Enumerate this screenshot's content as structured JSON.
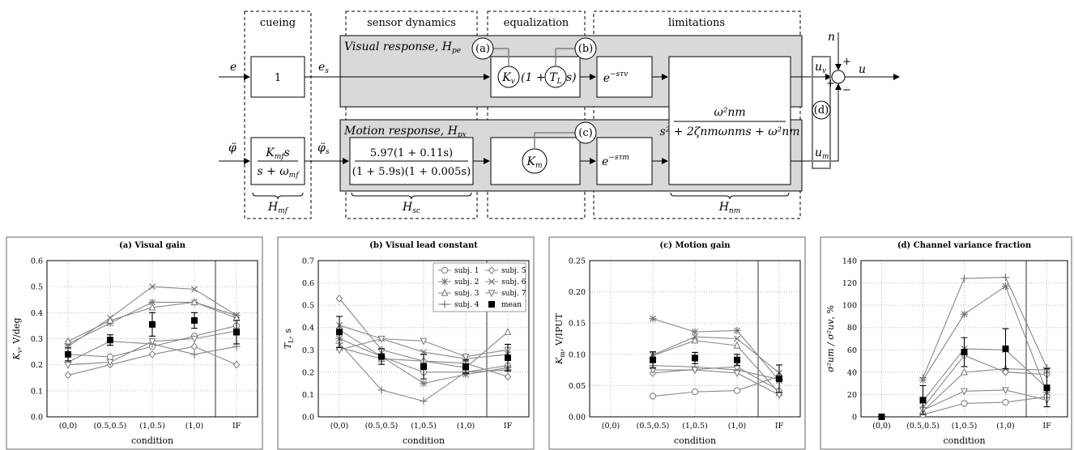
{
  "diagram": {
    "sections": {
      "cueing": "cueing",
      "sensor": "sensor dynamics",
      "equalization": "equalization",
      "limitations": "limitations"
    },
    "visual_title": "Visual response, H_{p_e}",
    "visual_title_main": "Visual response, ",
    "visual_title_H": "H",
    "visual_title_sub": "pe",
    "motion_title_main": "Motion response, ",
    "motion_title_H": "H",
    "motion_title_sub": "px",
    "input_e": "e",
    "input_phi": "φ̈",
    "signal_es": "e",
    "signal_es_sub": "s",
    "signal_phis": "φ̈",
    "signal_phis_sub": "s",
    "block_gain": "1",
    "block_mf_num": "K",
    "block_mf_num_sub": "mf",
    "block_mf_num_s": "s",
    "block_mf_den": "s + ω",
    "block_mf_den_sub": "mf",
    "block_sc_num": "5.97(1 + 0.11s)",
    "block_sc_den": "(1 + 5.9s)(1 + 0.005s)",
    "block_kv": "K",
    "block_kv_sub": "v",
    "block_lead_open": "(1 +",
    "block_tl": "T",
    "block_tl_sub": "L",
    "block_lead_close": "s)",
    "block_km": "K",
    "block_km_sub": "m",
    "delay_v": "e",
    "delay_v_exp": "−sτv",
    "delay_m": "e",
    "delay_m_exp": "−sτm",
    "nm_num": "ω²nm",
    "nm_den": "s² + 2ζnmωnms + ω²nm",
    "out_uv": "u",
    "out_uv_sub": "v",
    "out_um": "u",
    "out_um_sub": "m",
    "out_u": "u",
    "noise_n": "n",
    "plus1": "+",
    "plus2": "+",
    "minus": "−",
    "mark_a": "(a)",
    "mark_b": "(b)",
    "mark_c": "(c)",
    "mark_d": "(d)",
    "brace_mf": "H",
    "brace_mf_sub": "mf",
    "brace_sc": "H",
    "brace_sc_sub": "sc",
    "brace_nm": "H",
    "brace_nm_sub": "nm"
  },
  "chart_data": [
    {
      "type": "line",
      "title": "(a) Visual gain",
      "xlabel": "condition",
      "ylabel": "K_v, V/deg",
      "ylabel_main": "K",
      "ylabel_sub": "v",
      "ylabel_unit": ",  V/deg",
      "categories": [
        "(0,0)",
        "(0.5,0.5)",
        "(1,0.5)",
        "(1,0)",
        "IF"
      ],
      "yticks": [
        "0.0",
        "0.1",
        "0.2",
        "0.3",
        "0.4",
        "0.5",
        "0.6"
      ],
      "ylim": [
        0,
        0.6
      ],
      "series": [
        {
          "name": "subj. 1",
          "marker": "circle",
          "values": [
            0.24,
            0.23,
            0.27,
            0.31,
            0.35
          ]
        },
        {
          "name": "subj. 2",
          "marker": "asterisk",
          "values": [
            0.28,
            0.36,
            0.44,
            0.44,
            0.39
          ]
        },
        {
          "name": "subj. 3",
          "marker": "triangle-up",
          "values": [
            0.29,
            0.37,
            0.42,
            0.44,
            0.38
          ]
        },
        {
          "name": "subj. 4",
          "marker": "plus",
          "values": [
            0.21,
            0.29,
            0.28,
            0.24,
            0.27
          ]
        },
        {
          "name": "subj. 5",
          "marker": "diamond",
          "values": [
            0.16,
            0.2,
            0.24,
            0.27,
            0.2
          ]
        },
        {
          "name": "subj. 6",
          "marker": "cross",
          "values": [
            0.27,
            0.38,
            0.5,
            0.49,
            0.39
          ]
        },
        {
          "name": "subj. 7",
          "marker": "triangle-down",
          "values": [
            0.2,
            0.21,
            0.29,
            0.3,
            0.33
          ]
        }
      ],
      "mean": {
        "values": [
          0.24,
          0.295,
          0.355,
          0.37,
          0.325
        ],
        "err": [
          0.025,
          0.02,
          0.045,
          0.03,
          0.045
        ]
      }
    },
    {
      "type": "line",
      "title": "(b) Visual lead constant",
      "xlabel": "condition",
      "ylabel": "T_L, s",
      "ylabel_main": "T",
      "ylabel_sub": "L",
      "ylabel_unit": ",  s",
      "categories": [
        "(0,0)",
        "(0.5,0.5)",
        "(1,0.5)",
        "(1,0)",
        "IF"
      ],
      "yticks": [
        "0.0",
        "0.1",
        "0.2",
        "0.3",
        "0.4",
        "0.5",
        "0.6",
        "0.7"
      ],
      "ylim": [
        0,
        0.7
      ],
      "series": [
        {
          "name": "subj. 1",
          "marker": "circle",
          "values": [
            0.39,
            0.27,
            0.2,
            0.2,
            0.23
          ]
        },
        {
          "name": "subj. 2",
          "marker": "asterisk",
          "values": [
            0.35,
            0.27,
            0.15,
            0.19,
            0.22
          ]
        },
        {
          "name": "subj. 3",
          "marker": "triangle-up",
          "values": [
            0.31,
            0.26,
            0.25,
            0.22,
            0.38
          ]
        },
        {
          "name": "subj. 4",
          "marker": "plus",
          "values": [
            0.33,
            0.12,
            0.07,
            0.2,
            0.21
          ]
        },
        {
          "name": "subj. 5",
          "marker": "diamond",
          "values": [
            0.53,
            0.3,
            0.25,
            0.24,
            0.18
          ]
        },
        {
          "name": "subj. 6",
          "marker": "cross",
          "values": [
            0.41,
            0.35,
            0.29,
            0.26,
            0.28
          ]
        },
        {
          "name": "subj. 7",
          "marker": "triangle-down",
          "values": [
            0.3,
            0.35,
            0.34,
            0.27,
            0.3
          ]
        }
      ],
      "mean": {
        "values": [
          0.38,
          0.27,
          0.225,
          0.225,
          0.265
        ],
        "err": [
          0.07,
          0.035,
          0.055,
          0.03,
          0.06
        ]
      },
      "legend": {
        "position": "top-right",
        "entries": [
          "subj. 1",
          "subj. 5",
          "subj. 2",
          "subj. 6",
          "subj. 3",
          "subj. 7",
          "subj. 4",
          "mean"
        ]
      }
    },
    {
      "type": "line",
      "title": "(c) Motion gain",
      "xlabel": "condition",
      "ylabel": "K_m, V/IPUT",
      "ylabel_main": "K",
      "ylabel_sub": "m",
      "ylabel_unit": ",  V/IPUT",
      "categories": [
        "(0,0)",
        "(0.5,0.5)",
        "(1,0.5)",
        "(1,0)",
        "IF"
      ],
      "yticks": [
        "0.00",
        "0.05",
        "0.10",
        "0.15",
        "0.20",
        "0.25"
      ],
      "ylim": [
        0,
        0.25
      ],
      "series": [
        {
          "name": "subj. 1",
          "marker": "circle",
          "values": [
            null,
            0.033,
            0.04,
            0.042,
            0.065
          ]
        },
        {
          "name": "subj. 2",
          "marker": "asterisk",
          "values": [
            null,
            0.157,
            0.136,
            0.138,
            0.058
          ]
        },
        {
          "name": "subj. 3",
          "marker": "triangle-up",
          "values": [
            null,
            0.098,
            0.122,
            0.114,
            0.038
          ]
        },
        {
          "name": "subj. 4",
          "marker": "plus",
          "values": [
            null,
            0.082,
            0.08,
            0.075,
            0.06
          ]
        },
        {
          "name": "subj. 5",
          "marker": "diamond",
          "values": [
            null,
            0.07,
            0.076,
            0.08,
            0.042
          ]
        },
        {
          "name": "subj. 6",
          "marker": "cross",
          "values": [
            null,
            0.099,
            0.128,
            0.125,
            0.07
          ]
        },
        {
          "name": "subj. 7",
          "marker": "triangle-down",
          "values": [
            null,
            0.075,
            0.075,
            0.07,
            0.035
          ]
        }
      ],
      "mean": {
        "values": [
          null,
          0.091,
          0.094,
          0.091,
          0.061
        ],
        "err": [
          null,
          0.013,
          0.009,
          0.009,
          0.022
        ]
      }
    },
    {
      "type": "line",
      "title": "(d) Channel variance fraction",
      "xlabel": "condition",
      "ylabel": "σ²_um / σ²_uv, %",
      "ylabel_main": "σ²um / σ²uv",
      "ylabel_sub": "",
      "ylabel_unit": ",  %",
      "categories": [
        "(0,0)",
        "(0.5,0.5)",
        "(1,0.5)",
        "(1,0)",
        "IF"
      ],
      "yticks": [
        "0",
        "20",
        "40",
        "60",
        "80",
        "100",
        "120",
        "140"
      ],
      "ylim": [
        0,
        140
      ],
      "series": [
        {
          "name": "subj. 1",
          "marker": "circle",
          "values": [
            null,
            2,
            12,
            13,
            18
          ]
        },
        {
          "name": "subj. 2",
          "marker": "asterisk",
          "values": [
            null,
            33,
            92,
            117,
            22
          ]
        },
        {
          "name": "subj. 3",
          "marker": "triangle-up",
          "values": [
            null,
            5,
            40,
            43,
            42
          ]
        },
        {
          "name": "subj. 4",
          "marker": "plus",
          "values": [
            null,
            35,
            124,
            125,
            44
          ]
        },
        {
          "name": "subj. 5",
          "marker": "diamond",
          "values": [
            null,
            8,
            55,
            40,
            38
          ]
        },
        {
          "name": "subj. 6",
          "marker": "cross",
          "values": [
            null,
            14,
            61,
            60,
            26
          ]
        },
        {
          "name": "subj. 7",
          "marker": "triangle-down",
          "values": [
            null,
            6,
            23,
            24,
            15
          ]
        }
      ],
      "mean": {
        "values": [
          0,
          15,
          58,
          61,
          26
        ],
        "err": [
          0,
          13,
          13,
          18,
          17
        ]
      }
    }
  ]
}
